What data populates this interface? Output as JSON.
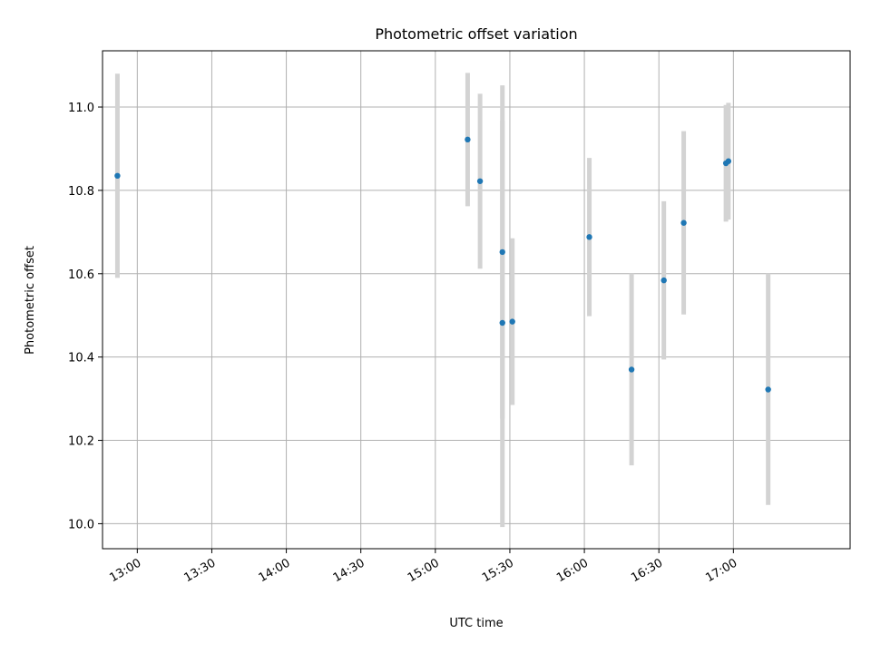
{
  "chart_data": {
    "type": "scatter",
    "title": "Photometric offset variation",
    "xlabel": "UTC time",
    "ylabel": "Photometric offset",
    "x_axis_type": "time",
    "xlim": [
      "12:46",
      "17:47"
    ],
    "ylim": [
      9.94,
      11.135
    ],
    "grid": true,
    "x_ticks": [
      "13:00",
      "13:30",
      "14:00",
      "14:30",
      "15:00",
      "15:30",
      "16:00",
      "16:30",
      "17:00"
    ],
    "y_ticks": [
      "10.0",
      "10.2",
      "10.4",
      "10.6",
      "10.8",
      "11.0"
    ],
    "marker_color": "#1f77b4",
    "errorbar_color": "#d3d3d3",
    "points": [
      {
        "x": "12:52",
        "y": 10.835,
        "err_low": 10.59,
        "err_high": 11.08
      },
      {
        "x": "15:13",
        "y": 10.922,
        "err_low": 10.762,
        "err_high": 11.082
      },
      {
        "x": "15:18",
        "y": 10.822,
        "err_low": 10.612,
        "err_high": 11.032
      },
      {
        "x": "15:27",
        "y": 10.652,
        "err_low": 10.252,
        "err_high": 11.052
      },
      {
        "x": "15:27",
        "y": 10.482,
        "err_low": 9.992,
        "err_high": 10.968
      },
      {
        "x": "15:31",
        "y": 10.485,
        "err_low": 10.285,
        "err_high": 10.685
      },
      {
        "x": "16:02",
        "y": 10.688,
        "err_low": 10.498,
        "err_high": 10.878
      },
      {
        "x": "16:19",
        "y": 10.37,
        "err_low": 10.14,
        "err_high": 10.6
      },
      {
        "x": "16:32",
        "y": 10.584,
        "err_low": 10.394,
        "err_high": 10.774
      },
      {
        "x": "16:40",
        "y": 10.722,
        "err_low": 10.502,
        "err_high": 10.942
      },
      {
        "x": "16:57",
        "y": 10.865,
        "err_low": 10.725,
        "err_high": 11.005
      },
      {
        "x": "16:58",
        "y": 10.87,
        "err_low": 10.73,
        "err_high": 11.01
      },
      {
        "x": "17:14",
        "y": 10.322,
        "err_low": 10.045,
        "err_high": 10.6
      }
    ]
  }
}
